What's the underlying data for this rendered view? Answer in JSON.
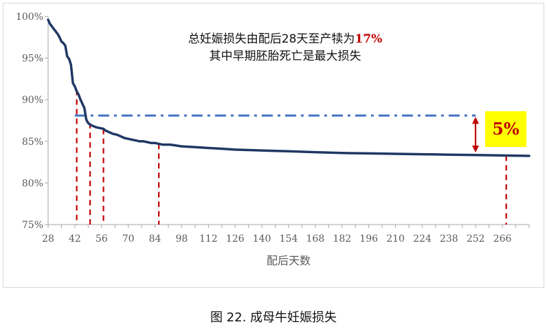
{
  "chart_data": {
    "type": "line",
    "title": "",
    "xlabel": "配后天数",
    "ylabel": "",
    "xlim": [
      28,
      280
    ],
    "ylim": [
      75,
      100
    ],
    "x_ticks": [
      28,
      42,
      56,
      70,
      84,
      98,
      112,
      126,
      140,
      154,
      168,
      182,
      196,
      210,
      224,
      238,
      252,
      266
    ],
    "y_ticks": [
      75,
      80,
      85,
      90,
      95,
      100
    ],
    "y_tick_labels": [
      "75%",
      "80%",
      "85%",
      "90%",
      "95%",
      "100%"
    ],
    "grid": false,
    "series": [
      {
        "name": "",
        "color": "#1f3864",
        "x": [
          28,
          29,
          30,
          31,
          32,
          33,
          34,
          35,
          36,
          37,
          38,
          39,
          40,
          41,
          42,
          43,
          44,
          45,
          46,
          47,
          48,
          49,
          50,
          51,
          52,
          53,
          55,
          57,
          58,
          60,
          62,
          64,
          66,
          68,
          70,
          72,
          74,
          76,
          78,
          80,
          82,
          84,
          86,
          88,
          90,
          92,
          95,
          98,
          105,
          112,
          120,
          126,
          133,
          140,
          147,
          154,
          168,
          182,
          196,
          210,
          224,
          238,
          252,
          266,
          280
        ],
        "y": [
          99.6,
          99.1,
          98.8,
          98.5,
          98.2,
          97.9,
          97.5,
          97.0,
          96.8,
          96.5,
          95.2,
          94.9,
          94.2,
          92.0,
          91.6,
          91.0,
          90.6,
          90.0,
          89.5,
          89.0,
          87.6,
          87.2,
          87.0,
          86.9,
          86.8,
          86.7,
          86.6,
          86.5,
          86.3,
          86.1,
          85.9,
          85.8,
          85.6,
          85.4,
          85.3,
          85.2,
          85.1,
          85.0,
          85.0,
          84.9,
          84.8,
          84.8,
          84.7,
          84.6,
          84.6,
          84.6,
          84.5,
          84.4,
          84.3,
          84.2,
          84.1,
          84.0,
          83.95,
          83.9,
          83.85,
          83.8,
          83.7,
          83.6,
          83.55,
          83.5,
          83.45,
          83.4,
          83.35,
          83.3,
          83.25
        ]
      }
    ],
    "reference_line": {
      "y": 88.1,
      "x_start": 42,
      "x_end": 252,
      "style": "dash-dot",
      "color": "#4472c4"
    },
    "drop_lines": [
      {
        "x": 43,
        "y": 91.2
      },
      {
        "x": 50,
        "y": 87.2
      },
      {
        "x": 57,
        "y": 86.5
      },
      {
        "x": 86,
        "y": 84.7
      },
      {
        "x": 268,
        "y": 83.3
      }
    ],
    "annotation_lines": [
      {
        "text": "总妊娠损失由配后28天至产犊为",
        "highlight": "17%"
      },
      {
        "text": "其中早期胚胎死亡是最大损失",
        "highlight": ""
      }
    ],
    "callout_label": "5%",
    "callout_bg": "#ffff00",
    "callout_color": "#c00000",
    "arrow_color": "#c00000"
  },
  "caption": "图  22. 成母牛妊娠损失"
}
